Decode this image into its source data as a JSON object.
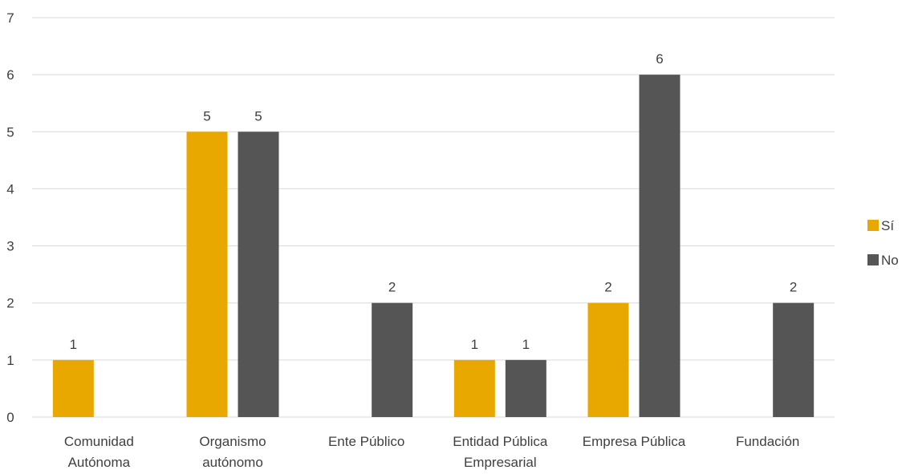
{
  "chart_data": {
    "type": "bar",
    "categories": [
      [
        "Comunidad",
        "Autónoma"
      ],
      [
        "Organismo",
        "autónomo"
      ],
      [
        "Ente Público"
      ],
      [
        "Entidad Pública",
        "Empresarial"
      ],
      [
        "Empresa Pública"
      ],
      [
        "Fundación"
      ]
    ],
    "series": [
      {
        "name": "Sí",
        "color": "#E8A800",
        "values": [
          1,
          5,
          0,
          1,
          2,
          0
        ]
      },
      {
        "name": "No",
        "color": "#555555",
        "values": [
          0,
          5,
          2,
          1,
          6,
          2
        ]
      }
    ],
    "data_labels": [
      [
        "1",
        "5",
        "",
        "1",
        "2",
        ""
      ],
      [
        "",
        "5",
        "2",
        "1",
        "6",
        "2"
      ]
    ],
    "y_ticks": [
      0,
      1,
      2,
      3,
      4,
      5,
      6,
      7
    ],
    "ylim": [
      0,
      7
    ],
    "grid": true,
    "legend_position": "right",
    "gridline_color": "#D9D9D9"
  }
}
